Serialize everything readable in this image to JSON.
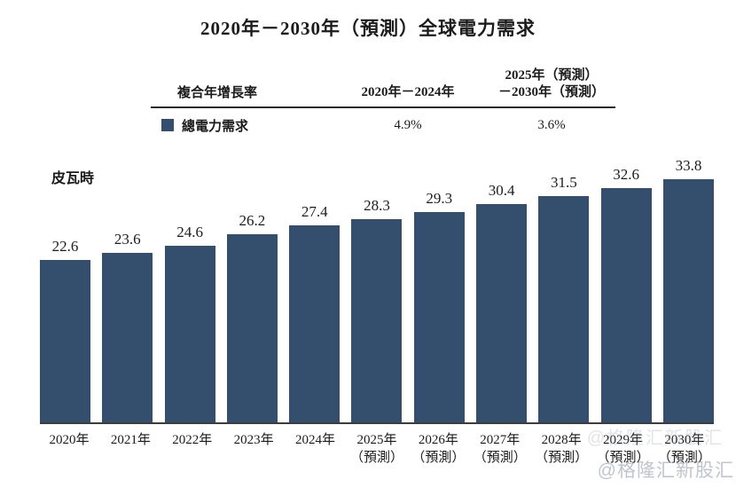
{
  "title": "2020年－2030年（預測）全球電力需求",
  "unit_label": "皮瓦時",
  "cagr_table": {
    "col1_header": "複合年增長率",
    "col2_header": "2020年－2024年",
    "col3_header_line1": "2025年（預測）",
    "col3_header_line2": "－2030年（預測）",
    "row_label": "總電力需求",
    "col2_value": "4.9%",
    "col3_value": "3.6%"
  },
  "watermark": {
    "text": "@格隆汇新股汇"
  },
  "colors": {
    "bar": "#344f6e",
    "legend_square": "#344f6e",
    "axis": "#3c3c3c",
    "text": "#1b1b1b",
    "watermark": "#8b97a3"
  },
  "chart_data": {
    "type": "bar",
    "title": "2020年－2030年（預測）全球電力需求",
    "ylabel": "皮瓦時",
    "xlabel": "",
    "ylim": [
      0,
      35
    ],
    "grid": false,
    "legend": [
      {
        "label": "總電力需求",
        "color": "#344f6e"
      }
    ],
    "categories": [
      {
        "year": "2020年",
        "note": ""
      },
      {
        "year": "2021年",
        "note": ""
      },
      {
        "year": "2022年",
        "note": ""
      },
      {
        "year": "2023年",
        "note": ""
      },
      {
        "year": "2024年",
        "note": ""
      },
      {
        "year": "2025年",
        "note": "（預測）"
      },
      {
        "year": "2026年",
        "note": "（預測）"
      },
      {
        "year": "2027年",
        "note": "（預測）"
      },
      {
        "year": "2028年",
        "note": "（預測）"
      },
      {
        "year": "2029年",
        "note": "（預測）"
      },
      {
        "year": "2030年",
        "note": "（預測）"
      }
    ],
    "values": [
      22.6,
      23.6,
      24.6,
      26.2,
      27.4,
      28.3,
      29.3,
      30.4,
      31.5,
      32.6,
      33.8
    ],
    "cagr_2020_2024": "4.9%",
    "cagr_2025_2030": "3.6%"
  }
}
